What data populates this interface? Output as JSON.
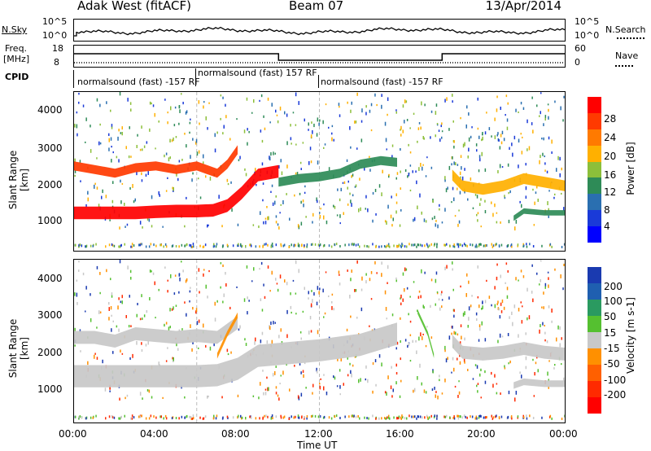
{
  "header": {
    "station": "Adak West (fitACF)",
    "beam": "Beam 07",
    "date": "13/Apr/2014"
  },
  "panels": {
    "nsky_label": "N.Sky",
    "nsky_ticks": [
      "10^5",
      "10^0"
    ],
    "nsearch_label": "N.Search",
    "nsearch_ticks": [
      "10^5",
      "10^0"
    ],
    "freq_label": "Freq.",
    "freq_unit": "[MHz]",
    "freq_ticks": [
      "18",
      "8"
    ],
    "nave_label": "Nave",
    "nave_ticks": [
      "60",
      "0"
    ],
    "cpid_label": "CPID",
    "cpid_segments": [
      "normalsound (fast) -157 RF",
      "normalsound (fast) 157 RF",
      "normalsound (fast) -157 RF"
    ]
  },
  "axes": {
    "ylabel": "Slant Range [km]",
    "yticks": [
      "4000",
      "3000",
      "2000",
      "1000"
    ],
    "xlabel": "Time UT",
    "xticks": [
      "00:00",
      "04:00",
      "08:00",
      "12:00",
      "16:00",
      "20:00",
      "00:00"
    ]
  },
  "colorbars": {
    "power": {
      "label": "Power [dB]",
      "ticks": [
        "28",
        "24",
        "20",
        "16",
        "12",
        "8",
        "4"
      ],
      "colors": [
        "#ff0000",
        "#ff3a00",
        "#ff7a00",
        "#ffb000",
        "#8cbf3a",
        "#2e8b57",
        "#2a6fb0",
        "#1a3ad8",
        "#0000ff"
      ]
    },
    "velocity": {
      "label": "Velocity [m s-1]",
      "ticks": [
        "200",
        "100",
        "50",
        "15",
        "-15",
        "-50",
        "-100",
        "-200"
      ],
      "colors": [
        "#1a3ab0",
        "#1f5fb0",
        "#2a9a60",
        "#55c030",
        "#c8c8c8",
        "#ff9000",
        "#ff6000",
        "#ff2a00",
        "#ff0000"
      ]
    }
  },
  "chart_data": [
    {
      "type": "heatmap",
      "title": "Power",
      "xlabel": "Time UT",
      "ylabel": "Slant Range [km]",
      "xlim": [
        0,
        24
      ],
      "ylim": [
        200,
        4600
      ],
      "colorbar_range": [
        0,
        30
      ],
      "bands": [
        {
          "x": [
            0,
            1,
            2,
            3,
            4,
            5,
            6,
            6.8,
            7.5,
            8.2,
            9,
            10
          ],
          "y": [
            1250,
            1250,
            1250,
            1250,
            1280,
            1300,
            1300,
            1320,
            1450,
            1800,
            2300,
            2400
          ],
          "w": 350,
          "level": 28
        },
        {
          "x": [
            0,
            1,
            2,
            3,
            4,
            5,
            6,
            7,
            7.5,
            8
          ],
          "y": [
            2550,
            2450,
            2350,
            2500,
            2550,
            2450,
            2550,
            2350,
            2600,
            3000
          ],
          "w": 250,
          "level": 24
        },
        {
          "x": [
            10,
            11,
            12,
            13,
            14,
            15,
            15.8
          ],
          "y": [
            2100,
            2200,
            2250,
            2350,
            2600,
            2700,
            2650
          ],
          "w": 250,
          "level": 10
        },
        {
          "x": [
            18.5,
            19,
            20,
            21,
            22,
            23,
            24
          ],
          "y": [
            2300,
            2000,
            1900,
            2000,
            2200,
            2100,
            2000
          ],
          "w": 300,
          "level": 18
        },
        {
          "x": [
            21.5,
            22,
            23,
            24
          ],
          "y": [
            1100,
            1300,
            1250,
            1250
          ],
          "w": 150,
          "level": 10
        }
      ]
    },
    {
      "type": "heatmap",
      "title": "Velocity",
      "xlabel": "Time UT",
      "ylabel": "Slant Range [km]",
      "xlim": [
        0,
        24
      ],
      "ylim": [
        200,
        4600
      ],
      "colorbar_range": [
        -200,
        200
      ],
      "bands": [
        {
          "x": [
            0,
            2,
            4,
            6,
            7,
            8,
            9,
            10,
            12,
            14,
            15.8
          ],
          "y": [
            1450,
            1450,
            1450,
            1450,
            1480,
            1650,
            2000,
            2050,
            2150,
            2300,
            2600
          ],
          "w": 600,
          "level": 0
        },
        {
          "x": [
            0,
            1,
            2,
            3,
            4,
            5,
            6,
            7,
            8
          ],
          "y": [
            2500,
            2500,
            2400,
            2600,
            2550,
            2500,
            2550,
            2500,
            2900
          ],
          "w": 350,
          "level": 0
        },
        {
          "x": [
            18.5,
            19,
            20,
            21,
            22,
            23,
            24
          ],
          "y": [
            2400,
            2100,
            2050,
            2100,
            2200,
            2100,
            2050
          ],
          "w": 350,
          "level": 0
        },
        {
          "x": [
            21.5,
            22,
            23,
            24
          ],
          "y": [
            1200,
            1300,
            1250,
            1250
          ],
          "w": 180,
          "level": 0
        },
        {
          "x": [
            7,
            7.5,
            8
          ],
          "y": [
            2000,
            2600,
            3100
          ],
          "w": 150,
          "level": -60
        },
        {
          "x": [
            16.8,
            17.3,
            17.6
          ],
          "y": [
            3200,
            2600,
            2000
          ],
          "w": 120,
          "level": 40
        }
      ]
    }
  ]
}
